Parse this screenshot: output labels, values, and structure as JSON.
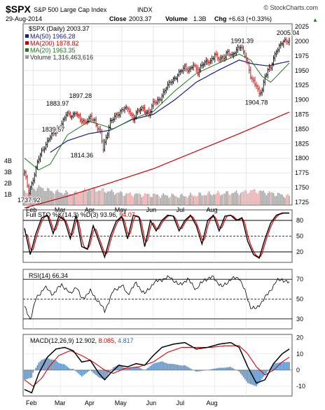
{
  "header": {
    "symbol": "$SPX",
    "name": "S&P 500 Large Cap Index",
    "exchange": "INDX",
    "date": "29-Aug-2014",
    "close_label": "Close",
    "close_value": "2003.37",
    "volume_label": "Volume",
    "volume_value": "1.3B",
    "chg_label": "Chg",
    "chg_value": "+6.63 (+0.33%)",
    "chg_arrow": "▲",
    "watermark": "© StockCharts.com"
  },
  "colors": {
    "price_up": "#000000",
    "price_down": "#cc0000",
    "ma50": "#1a1a8c",
    "ma200": "#cc0000",
    "ma20": "#1e7a1e",
    "volume_up": "#9a9a9a",
    "volume_down": "#e8a0a0",
    "k_line": "#000000",
    "d_line": "#e00000",
    "macd_line": "#000000",
    "signal_line": "#e00000",
    "histogram": "#3b7fc4",
    "sto_value_color": "#000000",
    "sto_d_color": "#cc0000",
    "macd_signal_color": "#cc0000",
    "macd_hist_color": "#2a6bb0"
  },
  "chart_data": [
    {
      "type": "line",
      "panel": "price",
      "title": "$SPX (Daily) 2003.37",
      "legend": [
        {
          "label": "MA(50) 1966.28",
          "color": "#1a1a8c"
        },
        {
          "label": "MA(200) 1878.82",
          "color": "#cc0000"
        },
        {
          "label": "MA(20) 1963.35",
          "color": "#1e7a1e"
        },
        {
          "label": "Volume 1,316,463,616",
          "color": "#9a9a9a"
        }
      ],
      "x_tick_labels": [
        "Feb",
        "Mar",
        "Apr",
        "May",
        "Jun",
        "Jul",
        "Aug"
      ],
      "y_tick_labels": [
        "2025",
        "2000",
        "1975",
        "1950",
        "1925",
        "1900",
        "1875",
        "1850",
        "1825",
        "1800",
        "1775",
        "1750",
        "1725"
      ],
      "volume_tick_labels": [
        "4B",
        "3B",
        "2B",
        "1B"
      ],
      "ylim": [
        1720,
        2030
      ],
      "annotations": [
        {
          "text": "1737.92",
          "x": "Feb",
          "value": 1737.92
        },
        {
          "text": "1839.57",
          "x": "Mar",
          "value": 1839.57
        },
        {
          "text": "1883.97",
          "x": "Mar",
          "value": 1883.97
        },
        {
          "text": "1897.28",
          "x": "Apr",
          "value": 1897.28
        },
        {
          "text": "1814.36",
          "x": "Apr",
          "value": 1814.36
        },
        {
          "text": "1991.39",
          "x": "Jul",
          "value": 1991.39
        },
        {
          "text": "1904.78",
          "x": "Aug",
          "value": 1904.78
        },
        {
          "text": "2005.04",
          "x": "Aug",
          "value": 2005.04
        }
      ],
      "close_anchors": [
        [
          0,
          1775
        ],
        [
          3,
          1742
        ],
        [
          6,
          1765
        ],
        [
          10,
          1800
        ],
        [
          14,
          1820
        ],
        [
          18,
          1838
        ],
        [
          22,
          1845
        ],
        [
          26,
          1860
        ],
        [
          29,
          1875
        ],
        [
          33,
          1872
        ],
        [
          36,
          1880
        ],
        [
          39,
          1865
        ],
        [
          42,
          1860
        ],
        [
          46,
          1872
        ],
        [
          49,
          1862
        ],
        [
          51,
          1850
        ],
        [
          53,
          1845
        ],
        [
          55,
          1818
        ],
        [
          57,
          1835
        ],
        [
          60,
          1860
        ],
        [
          63,
          1872
        ],
        [
          66,
          1878
        ],
        [
          70,
          1885
        ],
        [
          73,
          1882
        ],
        [
          76,
          1868
        ],
        [
          79,
          1880
        ],
        [
          83,
          1885
        ],
        [
          87,
          1876
        ],
        [
          90,
          1893
        ],
        [
          94,
          1900
        ],
        [
          97,
          1912
        ],
        [
          100,
          1924
        ],
        [
          103,
          1933
        ],
        [
          106,
          1940
        ],
        [
          109,
          1948
        ],
        [
          112,
          1955
        ],
        [
          115,
          1952
        ],
        [
          118,
          1960
        ],
        [
          121,
          1945
        ],
        [
          124,
          1962
        ],
        [
          127,
          1966
        ],
        [
          130,
          1963
        ],
        [
          133,
          1978
        ],
        [
          136,
          1972
        ],
        [
          139,
          1970
        ],
        [
          142,
          1981
        ],
        [
          145,
          1977
        ],
        [
          148,
          1985
        ],
        [
          151,
          1990
        ],
        [
          154,
          1978
        ],
        [
          156,
          1962
        ],
        [
          158,
          1940
        ],
        [
          160,
          1928
        ],
        [
          162,
          1925
        ],
        [
          164,
          1910
        ],
        [
          166,
          1920
        ],
        [
          168,
          1938
        ],
        [
          170,
          1950
        ],
        [
          172,
          1955
        ],
        [
          174,
          1972
        ],
        [
          176,
          1985
        ],
        [
          178,
          1990
        ],
        [
          180,
          1997
        ],
        [
          182,
          2000
        ],
        [
          185,
          2003
        ]
      ],
      "ma50_anchors": [
        [
          18,
          1810
        ],
        [
          30,
          1830
        ],
        [
          45,
          1842
        ],
        [
          60,
          1848
        ],
        [
          75,
          1866
        ],
        [
          90,
          1875
        ],
        [
          105,
          1900
        ],
        [
          120,
          1930
        ],
        [
          135,
          1950
        ],
        [
          150,
          1968
        ],
        [
          160,
          1961
        ],
        [
          170,
          1958
        ],
        [
          185,
          1966
        ]
      ],
      "ma200_anchors": [
        [
          0,
          1715
        ],
        [
          30,
          1735
        ],
        [
          60,
          1758
        ],
        [
          90,
          1782
        ],
        [
          120,
          1812
        ],
        [
          150,
          1842
        ],
        [
          185,
          1879
        ]
      ],
      "ma20_anchors": [
        [
          0,
          1800
        ],
        [
          10,
          1780
        ],
        [
          18,
          1790
        ],
        [
          30,
          1840
        ],
        [
          45,
          1863
        ],
        [
          55,
          1856
        ],
        [
          62,
          1850
        ],
        [
          75,
          1867
        ],
        [
          90,
          1880
        ],
        [
          105,
          1915
        ],
        [
          120,
          1945
        ],
        [
          135,
          1962
        ],
        [
          150,
          1978
        ],
        [
          158,
          1968
        ],
        [
          166,
          1940
        ],
        [
          172,
          1930
        ],
        [
          178,
          1945
        ],
        [
          185,
          1963
        ]
      ],
      "volume_anchors": [
        [
          0,
          1.2
        ],
        [
          10,
          1.6
        ],
        [
          20,
          1.2
        ],
        [
          35,
          1.0
        ],
        [
          45,
          1.4
        ],
        [
          55,
          1.3
        ],
        [
          70,
          1.0
        ],
        [
          90,
          0.9
        ],
        [
          110,
          0.8
        ],
        [
          130,
          1.0
        ],
        [
          150,
          1.1
        ],
        [
          160,
          1.3
        ],
        [
          185,
          0.8
        ]
      ]
    },
    {
      "type": "line",
      "panel": "full_stochastic",
      "title": "Full STO %K(14,3) %D(3) 93.96, 94.07",
      "title_parts": {
        "prefix": "Full STO %K(14,3) %D(3)",
        "k_value": "93.96,",
        "d_value": "94.07"
      },
      "y_tick_labels": [
        "80",
        "50",
        "20"
      ],
      "ylim": [
        0,
        100
      ],
      "k_anchors": [
        [
          0,
          65
        ],
        [
          4,
          15
        ],
        [
          8,
          55
        ],
        [
          12,
          85
        ],
        [
          16,
          90
        ],
        [
          20,
          55
        ],
        [
          24,
          88
        ],
        [
          28,
          80
        ],
        [
          32,
          45
        ],
        [
          36,
          90
        ],
        [
          40,
          30
        ],
        [
          44,
          25
        ],
        [
          48,
          70
        ],
        [
          52,
          40
        ],
        [
          56,
          10
        ],
        [
          60,
          50
        ],
        [
          64,
          78
        ],
        [
          68,
          88
        ],
        [
          72,
          45
        ],
        [
          76,
          90
        ],
        [
          80,
          86
        ],
        [
          84,
          30
        ],
        [
          88,
          80
        ],
        [
          92,
          60
        ],
        [
          96,
          80
        ],
        [
          100,
          90
        ],
        [
          104,
          88
        ],
        [
          108,
          60
        ],
        [
          112,
          80
        ],
        [
          116,
          90
        ],
        [
          120,
          70
        ],
        [
          124,
          35
        ],
        [
          128,
          80
        ],
        [
          132,
          90
        ],
        [
          136,
          60
        ],
        [
          140,
          88
        ],
        [
          144,
          90
        ],
        [
          148,
          80
        ],
        [
          152,
          85
        ],
        [
          156,
          40
        ],
        [
          160,
          15
        ],
        [
          164,
          8
        ],
        [
          168,
          45
        ],
        [
          172,
          75
        ],
        [
          176,
          90
        ],
        [
          180,
          94
        ],
        [
          185,
          94
        ]
      ]
    },
    {
      "type": "line",
      "panel": "rsi",
      "title": "RSI(14) 66.34",
      "y_tick_labels": [
        "70",
        "50",
        "30"
      ],
      "ylim": [
        20,
        80
      ],
      "rsi_anchors": [
        [
          0,
          42
        ],
        [
          4,
          30
        ],
        [
          8,
          50
        ],
        [
          14,
          62
        ],
        [
          20,
          55
        ],
        [
          26,
          65
        ],
        [
          32,
          55
        ],
        [
          36,
          63
        ],
        [
          40,
          50
        ],
        [
          46,
          58
        ],
        [
          52,
          47
        ],
        [
          56,
          38
        ],
        [
          62,
          58
        ],
        [
          68,
          64
        ],
        [
          72,
          55
        ],
        [
          78,
          66
        ],
        [
          84,
          55
        ],
        [
          90,
          66
        ],
        [
          96,
          70
        ],
        [
          102,
          72
        ],
        [
          108,
          64
        ],
        [
          114,
          70
        ],
        [
          120,
          60
        ],
        [
          126,
          70
        ],
        [
          132,
          72
        ],
        [
          138,
          62
        ],
        [
          144,
          70
        ],
        [
          150,
          72
        ],
        [
          154,
          58
        ],
        [
          158,
          42
        ],
        [
          162,
          40
        ],
        [
          166,
          48
        ],
        [
          170,
          55
        ],
        [
          176,
          68
        ],
        [
          180,
          70
        ],
        [
          185,
          66
        ]
      ]
    },
    {
      "type": "line",
      "panel": "macd",
      "title": "MACD(12,26,9) 12.902, 8.085, 4.817",
      "title_parts": {
        "prefix": "MACD(12,26,9)",
        "macd_value": "12.902,",
        "signal_value": "8.085,",
        "hist_value": "4.817"
      },
      "y_tick_labels": [
        "20",
        "10",
        "0",
        "-10"
      ],
      "ylim": [
        -16,
        22
      ],
      "macd_anchors": [
        [
          0,
          -12
        ],
        [
          5,
          -14
        ],
        [
          10,
          -2
        ],
        [
          16,
          8
        ],
        [
          22,
          13
        ],
        [
          28,
          14
        ],
        [
          34,
          12
        ],
        [
          40,
          5
        ],
        [
          46,
          6
        ],
        [
          52,
          -2
        ],
        [
          56,
          -6
        ],
        [
          60,
          -2
        ],
        [
          66,
          3
        ],
        [
          72,
          2
        ],
        [
          78,
          4
        ],
        [
          84,
          3
        ],
        [
          90,
          9
        ],
        [
          96,
          14
        ],
        [
          104,
          16
        ],
        [
          112,
          17
        ],
        [
          120,
          13
        ],
        [
          128,
          14
        ],
        [
          136,
          16
        ],
        [
          144,
          17
        ],
        [
          150,
          14
        ],
        [
          156,
          2
        ],
        [
          162,
          -8
        ],
        [
          168,
          -6
        ],
        [
          174,
          4
        ],
        [
          180,
          10
        ],
        [
          185,
          13
        ]
      ],
      "signal_anchors": [
        [
          0,
          -6
        ],
        [
          6,
          -10
        ],
        [
          12,
          -5
        ],
        [
          18,
          3
        ],
        [
          24,
          9
        ],
        [
          32,
          12
        ],
        [
          40,
          9
        ],
        [
          48,
          5
        ],
        [
          56,
          0
        ],
        [
          62,
          -2
        ],
        [
          70,
          1
        ],
        [
          80,
          2
        ],
        [
          90,
          5
        ],
        [
          100,
          11
        ],
        [
          110,
          14
        ],
        [
          120,
          14
        ],
        [
          130,
          14
        ],
        [
          140,
          15
        ],
        [
          150,
          15
        ],
        [
          156,
          10
        ],
        [
          162,
          2
        ],
        [
          168,
          -3
        ],
        [
          174,
          0
        ],
        [
          180,
          5
        ],
        [
          185,
          8
        ]
      ]
    }
  ]
}
